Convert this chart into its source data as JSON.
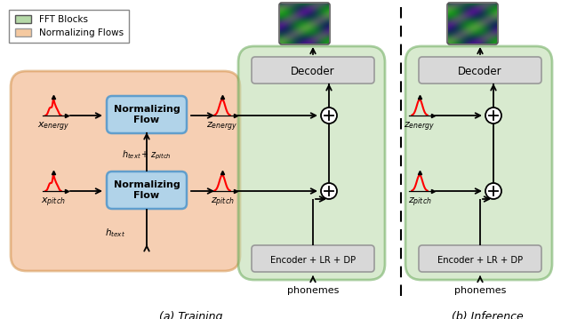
{
  "fig_width": 6.4,
  "fig_height": 3.59,
  "bg_color": "#ffffff",
  "legend_fft_color": "#b5d9a8",
  "legend_norm_color": "#f5c9a0",
  "orange_bg": "#f0a875",
  "green_bg": "#b8d9a8",
  "blue_box": "#aad4f0",
  "gray_box": "#d8d8d8",
  "title_a": "(a) Training",
  "title_b": "(b) Inference",
  "label_x_energy": "$x_{energy}$",
  "label_z_energy": "$z_{energy}$",
  "label_x_pitch": "$x_{pitch}$",
  "label_z_pitch": "$z_{pitch}$",
  "label_htext_zpitch": "$h_{text} + z_{pitch}$",
  "label_htext": "$h_{text}$",
  "label_decoder": "Decoder",
  "label_encoder": "Encoder + LR + DP",
  "label_phonemes": "phonemes",
  "label_norm_flow": "Normalizing\nFlow",
  "legend_fft_label": "FFT Blocks",
  "legend_norm_label": "Normalizing Flows"
}
